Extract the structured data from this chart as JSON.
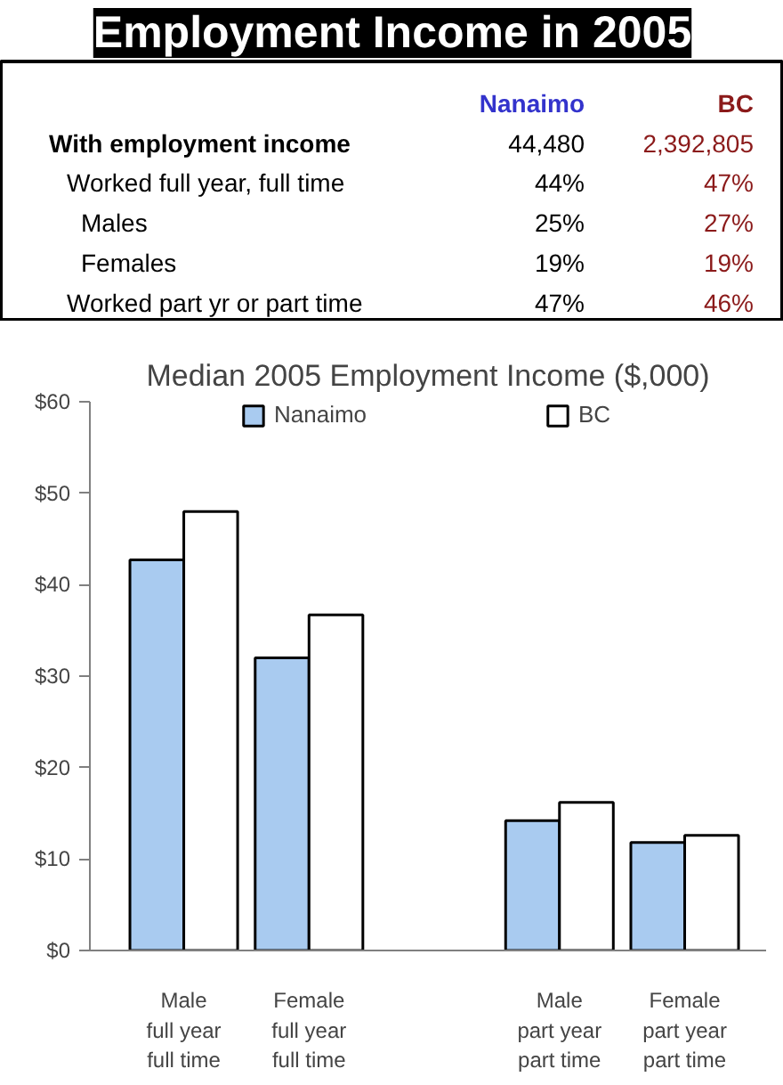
{
  "chart_data": [
    {
      "type": "other",
      "title": "Employment Income in 2005",
      "annotations": [
        "Nanaimo",
        "BC",
        "With employment income",
        "44,480",
        "2,392,805",
        "Worked full year, full time",
        "44%",
        "47%",
        "Males",
        "25%",
        "27%",
        "Females",
        "19%",
        "19%",
        "Worked part yr or part time",
        "47%",
        "46%"
      ]
    },
    {
      "type": "bar",
      "title": "Median 2005 Employment Income ($,000)",
      "categories": [
        "Male\nfull year\nfull time",
        "Female\nfull year\nfull time",
        null,
        "Male\npart year\npart time",
        "Female\npart year\npart time"
      ],
      "series": [
        {
          "name": "Nanaimo",
          "color": "#a9cbf0",
          "values": [
            42.7,
            32.0,
            null,
            14.2,
            11.8
          ]
        },
        {
          "name": "BC",
          "color": "#ffffff",
          "values": [
            48.0,
            36.7,
            null,
            16.2,
            12.6
          ]
        }
      ],
      "ylim": [
        0,
        60
      ],
      "yticks": [
        {
          "value": 0,
          "label": "$0"
        },
        {
          "value": 10,
          "label": "$10"
        },
        {
          "value": 20,
          "label": "$20"
        },
        {
          "value": 30,
          "label": "$30"
        },
        {
          "value": 40,
          "label": "$40"
        },
        {
          "value": 50,
          "label": "$50"
        },
        {
          "value": 60,
          "label": "$60"
        }
      ],
      "grid": false,
      "legend": "top"
    }
  ]
}
